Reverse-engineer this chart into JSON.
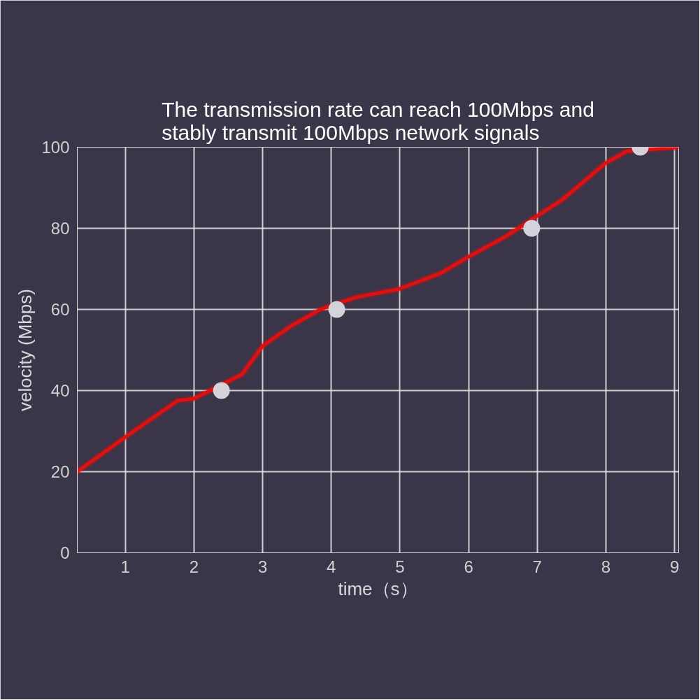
{
  "chart_data": {
    "type": "line",
    "title": "The transmission rate can reach 100Mbps and stably transmit 100Mbps network signals",
    "xlabel": "time（s）",
    "ylabel": "velocity (Mbps)",
    "series": [
      {
        "color": "#e01010",
        "marker": "none",
        "line_style": "solid",
        "x": [
          0.3,
          1.04,
          1.76,
          2.0,
          2.7,
          3.0,
          3.42,
          3.84,
          4.36,
          4.98,
          5.6,
          6.0,
          6.54,
          7.36,
          7.99,
          8.3,
          9.06
        ],
        "values": [
          20,
          29,
          37.5,
          38,
          44,
          51,
          56,
          60,
          63,
          65,
          69,
          73,
          78,
          87,
          96,
          99,
          100
        ]
      },
      {
        "type": "scatter",
        "color": "#d4d2da",
        "marker": "circle",
        "x": [
          2.4,
          4.08,
          6.92,
          8.5
        ],
        "values": [
          40,
          60,
          80,
          100
        ]
      }
    ],
    "xlim": [
      0.3,
      9.06
    ],
    "ylim": [
      0,
      100
    ],
    "xticks": [
      1,
      2,
      3,
      4,
      5,
      6,
      7,
      8,
      9
    ],
    "yticks": [
      0,
      20,
      40,
      60,
      80,
      100
    ],
    "grid": true
  }
}
